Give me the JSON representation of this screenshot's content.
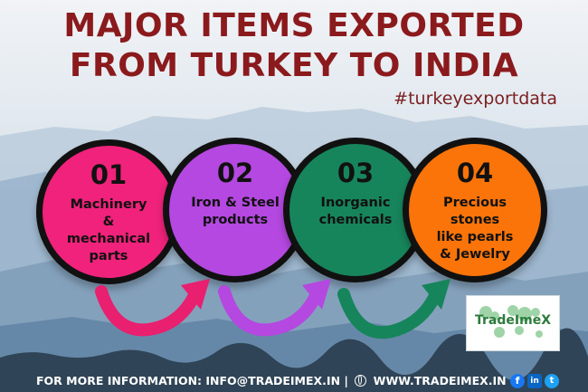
{
  "title": {
    "line1": "MAJOR ITEMS EXPORTED",
    "line2": "FROM TURKEY TO INDIA"
  },
  "hashtag": "#turkeyexportdata",
  "items": [
    {
      "number": "01",
      "label": "Machinery\n&\nmechanical\nparts",
      "color": "#f0227b"
    },
    {
      "number": "02",
      "label": "Iron & Steel\nproducts",
      "color": "#b448e0"
    },
    {
      "number": "03",
      "label": "Inorganic\nchemicals",
      "color": "#17855b"
    },
    {
      "number": "04",
      "label": "Precious\nstones\nlike pearls\n& Jewelry",
      "color": "#fa7409"
    }
  ],
  "arrow_colors": [
    "#e8206f",
    "#b448e0",
    "#17855b"
  ],
  "logo": {
    "text": "TradeImeX",
    "accent": "#2c7b3c"
  },
  "footer": {
    "info": "FOR MORE INFORMATION: INFO@TRADEIMEX.IN |",
    "website": "WWW.TRADEIMEX.IN"
  },
  "social_icons": [
    "facebook-icon",
    "linkedin-icon",
    "twitter-icon"
  ],
  "colors": {
    "title": "#8b1a1d",
    "sky_top": "#e9eef3",
    "mountains": "#6f93b3"
  }
}
